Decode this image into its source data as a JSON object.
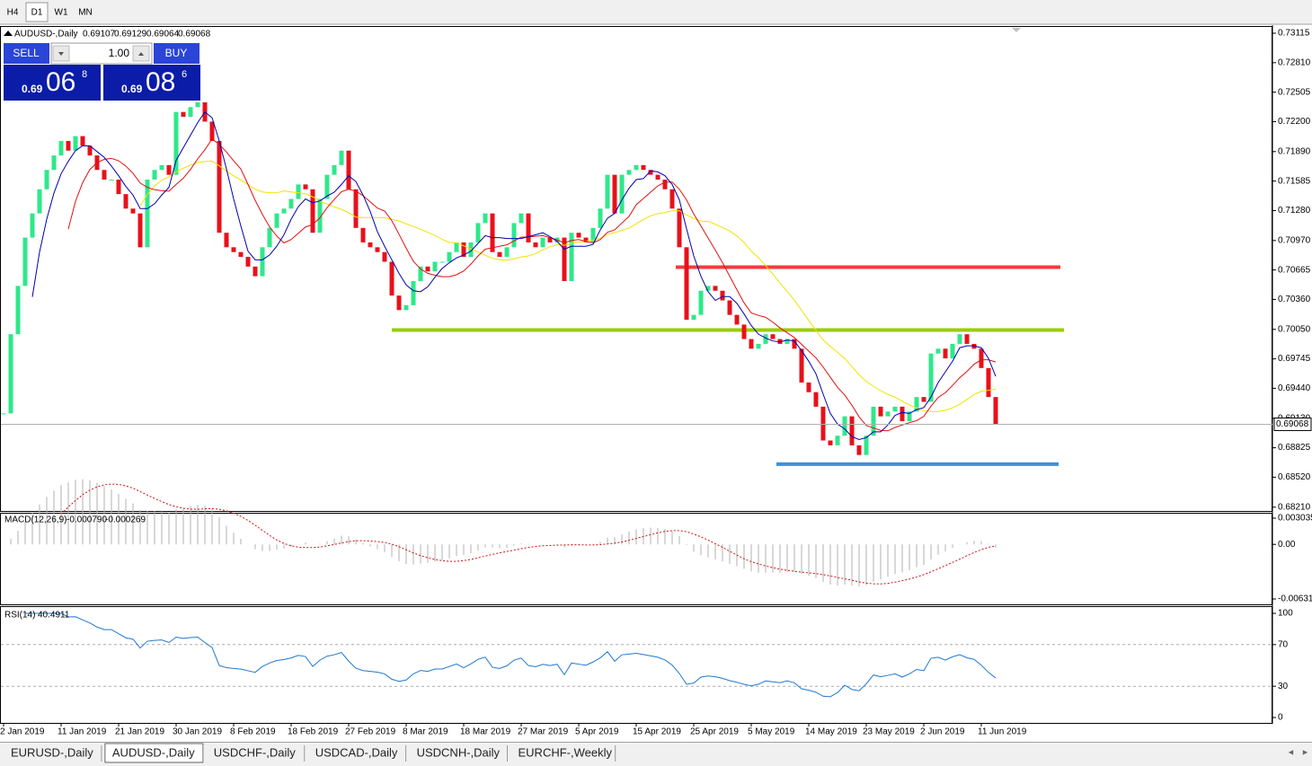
{
  "toolbar": {
    "timeframes": [
      "H4",
      "D1",
      "W1",
      "MN"
    ],
    "active": 1
  },
  "trade_panel": {
    "sell_label": "SELL",
    "buy_label": "BUY",
    "lots": "1.00",
    "sell_price": {
      "prefix": "0.69",
      "big": "06",
      "sup": "8"
    },
    "buy_price": {
      "prefix": "0.69",
      "big": "08",
      "sup": "6"
    }
  },
  "chart_data": {
    "type": "candlestick",
    "title": "AUDUSD-,Daily",
    "ohlc": [
      0.69107,
      0.69129,
      0.69064,
      0.69068
    ],
    "categories": [
      "2 Jan 2019",
      null,
      null,
      null,
      null,
      null,
      null,
      null,
      "11 Jan 2019",
      null,
      null,
      null,
      null,
      null,
      null,
      null,
      "21 Jan 2019",
      null,
      null,
      null,
      null,
      null,
      null,
      null,
      "30 Jan 2019",
      null,
      null,
      null,
      null,
      null,
      null,
      null,
      "8 Feb 2019",
      null,
      null,
      null,
      null,
      null,
      null,
      null,
      "18 Feb 2019",
      null,
      null,
      null,
      null,
      null,
      null,
      null,
      "27 Feb 2019",
      null,
      null,
      null,
      null,
      null,
      null,
      null,
      "8 Mar 2019",
      null,
      null,
      null,
      null,
      null,
      null,
      null,
      "18 Mar 2019",
      null,
      null,
      null,
      null,
      null,
      null,
      null,
      "27 Mar 2019",
      null,
      null,
      null,
      null,
      null,
      null,
      null,
      "5 Apr 2019",
      null,
      null,
      null,
      null,
      null,
      null,
      null,
      "15 Apr 2019",
      null,
      null,
      null,
      null,
      null,
      null,
      null,
      "25 Apr 2019",
      null,
      null,
      null,
      null,
      null,
      null,
      null,
      "5 May 2019",
      null,
      null,
      null,
      null,
      null,
      null,
      null,
      "14 May 2019",
      null,
      null,
      null,
      null,
      null,
      null,
      null,
      "23 May 2019",
      null,
      null,
      null,
      null,
      null,
      null,
      null,
      "2 Jun 2019",
      null,
      null,
      null,
      null,
      null,
      null,
      null,
      "11 Jun 2019",
      null,
      null
    ],
    "series": [
      {
        "up_color": "#2ee88a",
        "down_color": "#e8101a",
        "values": [
          0.6918,
          0.7,
          0.705,
          0.71,
          0.7125,
          0.715,
          0.717,
          0.7185,
          0.72,
          0.719,
          0.7205,
          0.7195,
          0.7185,
          0.717,
          0.716,
          0.716,
          0.7145,
          0.713,
          0.7125,
          0.709,
          0.716,
          0.717,
          0.7175,
          0.7165,
          0.723,
          0.7225,
          0.7235,
          0.724,
          0.722,
          0.72,
          0.7105,
          0.709,
          0.7085,
          0.708,
          0.707,
          0.706,
          0.709,
          0.711,
          0.7125,
          0.713,
          0.714,
          0.7155,
          0.715,
          0.7105,
          0.714,
          0.7165,
          0.7175,
          0.719,
          0.715,
          0.711,
          0.7095,
          0.709,
          0.7085,
          0.7075,
          0.704,
          0.7025,
          0.703,
          0.7055,
          0.707,
          0.7065,
          0.7075,
          0.7075,
          0.7085,
          0.7095,
          0.708,
          0.7095,
          0.7115,
          0.7125,
          0.7085,
          0.708,
          0.709,
          0.7115,
          0.7125,
          0.7095,
          0.709,
          0.71,
          0.7095,
          0.71,
          0.7055,
          0.7105,
          0.71,
          0.7095,
          0.711,
          0.713,
          0.7165,
          0.7125,
          0.7165,
          0.717,
          0.7175,
          0.717,
          0.7165,
          0.716,
          0.715,
          0.713,
          0.709,
          0.7015,
          0.702,
          0.7045,
          0.705,
          0.7045,
          0.7035,
          0.702,
          0.701,
          0.6995,
          0.6985,
          0.699,
          0.7,
          0.6995,
          0.699,
          0.6995,
          0.6985,
          0.695,
          0.694,
          0.6925,
          0.689,
          0.6885,
          0.6895,
          0.6915,
          0.6885,
          0.6875,
          0.6895,
          0.6925,
          0.6915,
          0.692,
          0.6925,
          0.691,
          0.692,
          0.6935,
          0.693,
          0.698,
          0.6985,
          0.6975,
          0.699,
          0.7,
          0.699,
          0.6985,
          0.6965,
          0.6935,
          0.6907
        ]
      }
    ],
    "ylim": [
      0.6818,
      0.7318
    ],
    "yticks": [
      0.73115,
      {
        "value": 0.7281,
        "label": "0.72810"
      },
      0.72505,
      {
        "value": 0.722,
        "label": "0.72200"
      },
      {
        "value": 0.7189,
        "label": "0.71890"
      },
      0.71585,
      {
        "value": 0.7128,
        "label": "0.71280"
      },
      {
        "value": 0.7097,
        "label": "0.70970"
      },
      0.70665,
      {
        "value": 0.7036,
        "label": "0.70360"
      },
      {
        "value": 0.7005,
        "label": "0.70050"
      },
      0.69745,
      {
        "value": 0.6944,
        "label": "0.69440"
      },
      {
        "value": 0.6913,
        "label": "0.69130"
      },
      0.68825,
      {
        "value": 0.6852,
        "label": "0.68520"
      },
      {
        "value": 0.6821,
        "label": "0.68210"
      }
    ],
    "current_price": 0.69068,
    "levels": [
      {
        "value": 0.70694,
        "color": "#f03c3c"
      },
      {
        "value": 0.70043,
        "color": "#9acd00"
      },
      {
        "value": 0.68655,
        "color": "#3d8fdc"
      }
    ],
    "macd": {
      "label": "MACD(12,26,9)",
      "values": [
        {
          "value": -0.00079,
          "label": "-0.000790"
        },
        -0.000269
      ],
      "ylim": [
        -0.006311,
        0.003035
      ],
      "yticks": [
        0.003035,
        {
          "value": 0,
          "label": "0.00"
        },
        -0.006311
      ]
    },
    "rsi": {
      "label": "RSI(14)",
      "value": 40.4911,
      "ylim": [
        0,
        100
      ],
      "yticks": [
        100,
        70,
        30,
        0
      ],
      "levels": [
        70,
        30
      ]
    }
  },
  "tabs": {
    "items": [
      "EURUSD-,Daily",
      "AUDUSD-,Daily",
      "USDCHF-,Daily",
      "USDCAD-,Daily",
      "USDCNH-,Daily",
      "EURCHF-,Weekly"
    ],
    "active": 1
  }
}
